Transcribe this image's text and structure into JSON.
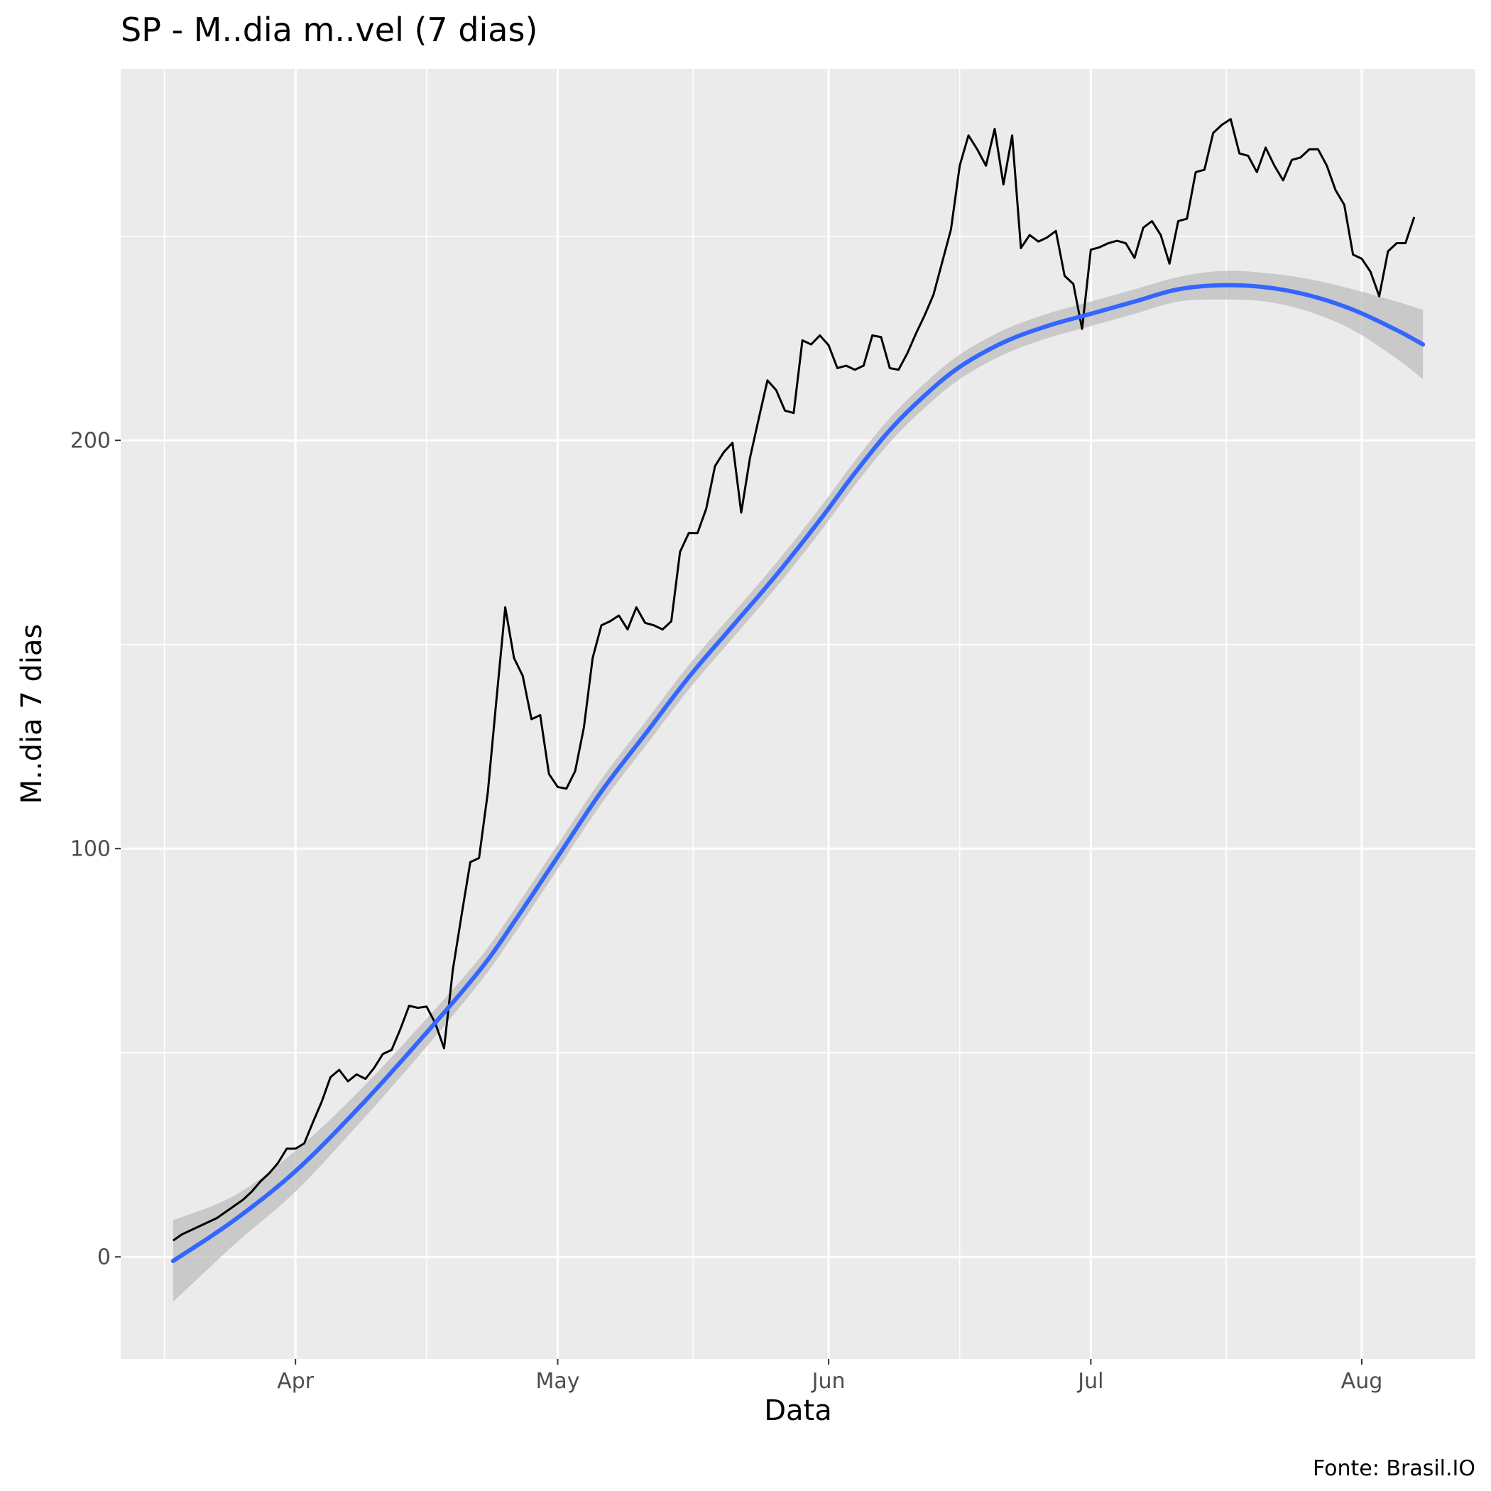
{
  "chart_data": {
    "type": "line",
    "title": "SP - M..dia m..vel (7 dias)",
    "xlabel": "Data",
    "ylabel": "M..dia 7 dias",
    "caption": "Fonte: Brasil.IO",
    "x_ticks": [
      {
        "label": "Apr",
        "date": "2020-04-01"
      },
      {
        "label": "May",
        "date": "2020-05-01"
      },
      {
        "label": "Jun",
        "date": "2020-06-01"
      },
      {
        "label": "Jul",
        "date": "2020-07-01"
      },
      {
        "label": "Aug",
        "date": "2020-08-01"
      }
    ],
    "y_ticks": [
      0,
      100,
      200
    ],
    "xlim": [
      "2020-03-12",
      "2020-08-14"
    ],
    "ylim": [
      -25,
      291
    ],
    "grid": true,
    "series": [
      {
        "style": "line",
        "color": "#000000",
        "start_date": "2020-03-18",
        "values": [
          4.0,
          5.5,
          6.5,
          7.5,
          8.5,
          9.5,
          11,
          12.5,
          14,
          16,
          18.5,
          20.5,
          23,
          26.5,
          26.5,
          27.8,
          33,
          38,
          44,
          45.8,
          43,
          44.7,
          43.6,
          46.3,
          49.7,
          50.7,
          55.8,
          61.5,
          61,
          61.3,
          57.2,
          51.1,
          70.3,
          83.7,
          96.7,
          97.7,
          113.7,
          136.7,
          159.1,
          146.7,
          142.3,
          131.7,
          132.7,
          118.3,
          115.1,
          114.7,
          119,
          129.7,
          146.7,
          154.7,
          155.7,
          157.1,
          153.7,
          159.1,
          155.3,
          154.7,
          153.7,
          155.7,
          172.7,
          177.3,
          177.3,
          183.3,
          193.7,
          197.1,
          199.4,
          182.3,
          195.7,
          205.3,
          214.7,
          212.3,
          207.3,
          206.7,
          224.5,
          223.5,
          225.7,
          223.3,
          217.7,
          218.3,
          217.3,
          218.3,
          225.7,
          225.3,
          217.7,
          217.3,
          221.3,
          226.2,
          230.7,
          235.7,
          243.7,
          251.7,
          267.3,
          274.7,
          271.3,
          267.3,
          276.3,
          262.7,
          274.7,
          247.1,
          250.3,
          248.7,
          249.7,
          251.3,
          240.3,
          238.3,
          227.3,
          246.7,
          247.3,
          248.3,
          248.9,
          248.3,
          244.7,
          252.1,
          253.7,
          250.3,
          243.3,
          253.7,
          254.3,
          265.7,
          266.3,
          275.3,
          277.3,
          278.7,
          270.3,
          269.7,
          265.7,
          271.7,
          267.3,
          263.7,
          268.7,
          269.3,
          271.3,
          271.3,
          267.3,
          261.3,
          257.7,
          245.5,
          244.5,
          241.3,
          235.3,
          246.3,
          248.3,
          248.3,
          254.7
        ]
      },
      {
        "style": "smooth",
        "color": "#3366FF",
        "ribbon_color": "#BDBDBD",
        "points": [
          {
            "date": "2020-03-18",
            "y": -1,
            "lo": -11,
            "hi": 9
          },
          {
            "date": "2020-03-25",
            "y": 9,
            "lo": 3,
            "hi": 15
          },
          {
            "date": "2020-04-01",
            "y": 21,
            "lo": 16,
            "hi": 26
          },
          {
            "date": "2020-04-08",
            "y": 36,
            "lo": 32,
            "hi": 40
          },
          {
            "date": "2020-04-15",
            "y": 52.5,
            "lo": 49,
            "hi": 56
          },
          {
            "date": "2020-04-22",
            "y": 70,
            "lo": 67,
            "hi": 73
          },
          {
            "date": "2020-04-26",
            "y": 82,
            "lo": 79,
            "hi": 85
          },
          {
            "date": "2020-05-01",
            "y": 98,
            "lo": 95,
            "hi": 101
          },
          {
            "date": "2020-05-06",
            "y": 114,
            "lo": 111,
            "hi": 117
          },
          {
            "date": "2020-05-11",
            "y": 128,
            "lo": 125,
            "hi": 131
          },
          {
            "date": "2020-05-16",
            "y": 142,
            "lo": 139,
            "hi": 145
          },
          {
            "date": "2020-05-21",
            "y": 154.5,
            "lo": 151.5,
            "hi": 157.5
          },
          {
            "date": "2020-05-26",
            "y": 167,
            "lo": 164,
            "hi": 170
          },
          {
            "date": "2020-05-31",
            "y": 180.5,
            "lo": 177.5,
            "hi": 183.5
          },
          {
            "date": "2020-06-04",
            "y": 192,
            "lo": 189,
            "hi": 195
          },
          {
            "date": "2020-06-08",
            "y": 202.5,
            "lo": 199.5,
            "hi": 205.5
          },
          {
            "date": "2020-06-12",
            "y": 211,
            "lo": 208,
            "hi": 214
          },
          {
            "date": "2020-06-16",
            "y": 218,
            "lo": 215,
            "hi": 221
          },
          {
            "date": "2020-06-21",
            "y": 224,
            "lo": 221,
            "hi": 227
          },
          {
            "date": "2020-06-26",
            "y": 228,
            "lo": 225,
            "hi": 231
          },
          {
            "date": "2020-07-01",
            "y": 231,
            "lo": 228,
            "hi": 234
          },
          {
            "date": "2020-07-06",
            "y": 234,
            "lo": 231,
            "hi": 237
          },
          {
            "date": "2020-07-11",
            "y": 237,
            "lo": 234,
            "hi": 240
          },
          {
            "date": "2020-07-16",
            "y": 238,
            "lo": 234.5,
            "hi": 241.5
          },
          {
            "date": "2020-07-21",
            "y": 237.5,
            "lo": 234,
            "hi": 241
          },
          {
            "date": "2020-07-26",
            "y": 235.5,
            "lo": 231.5,
            "hi": 239.5
          },
          {
            "date": "2020-07-31",
            "y": 232,
            "lo": 227,
            "hi": 237
          },
          {
            "date": "2020-08-05",
            "y": 227,
            "lo": 220,
            "hi": 234
          },
          {
            "date": "2020-08-08",
            "y": 223.5,
            "lo": 215,
            "hi": 232
          }
        ]
      }
    ]
  }
}
